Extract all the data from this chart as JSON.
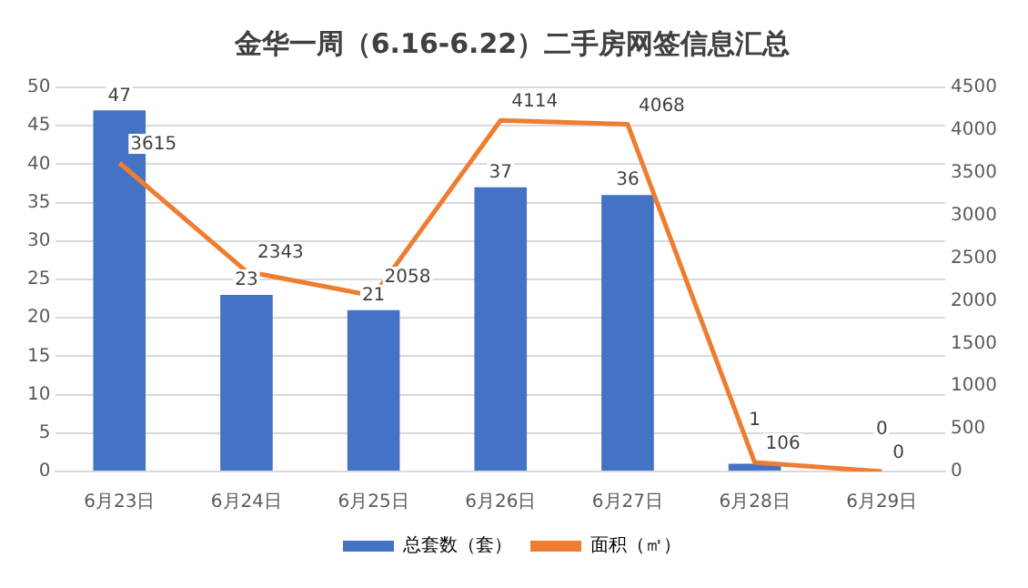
{
  "chart_data": {
    "type": "bar",
    "title": "金华一周（6.16-6.22）二手房网签信息汇总",
    "categories": [
      "6月23日",
      "6月24日",
      "6月25日",
      "6月26日",
      "6月27日",
      "6月28日",
      "6月29日"
    ],
    "series": [
      {
        "name": "总套数（套）",
        "color": "#4472c4",
        "values": [
          47,
          23,
          21,
          37,
          36,
          1,
          0
        ]
      },
      {
        "name": "面积（㎡）",
        "type": "line",
        "axis": "y2",
        "color": "#ed7d31",
        "values": [
          3615,
          2343,
          2058,
          4114,
          4068,
          106,
          0
        ]
      }
    ],
    "ylim": [
      0,
      50
    ],
    "yticks": [
      0,
      5,
      10,
      15,
      20,
      25,
      30,
      35,
      40,
      45,
      50
    ],
    "y2lim": [
      0,
      4500
    ],
    "y2ticks": [
      0,
      500,
      1000,
      1500,
      2000,
      2500,
      3000,
      3500,
      4000,
      4500
    ],
    "grid": "y",
    "legend": "bottom",
    "data_labels": true,
    "marker": "none"
  }
}
